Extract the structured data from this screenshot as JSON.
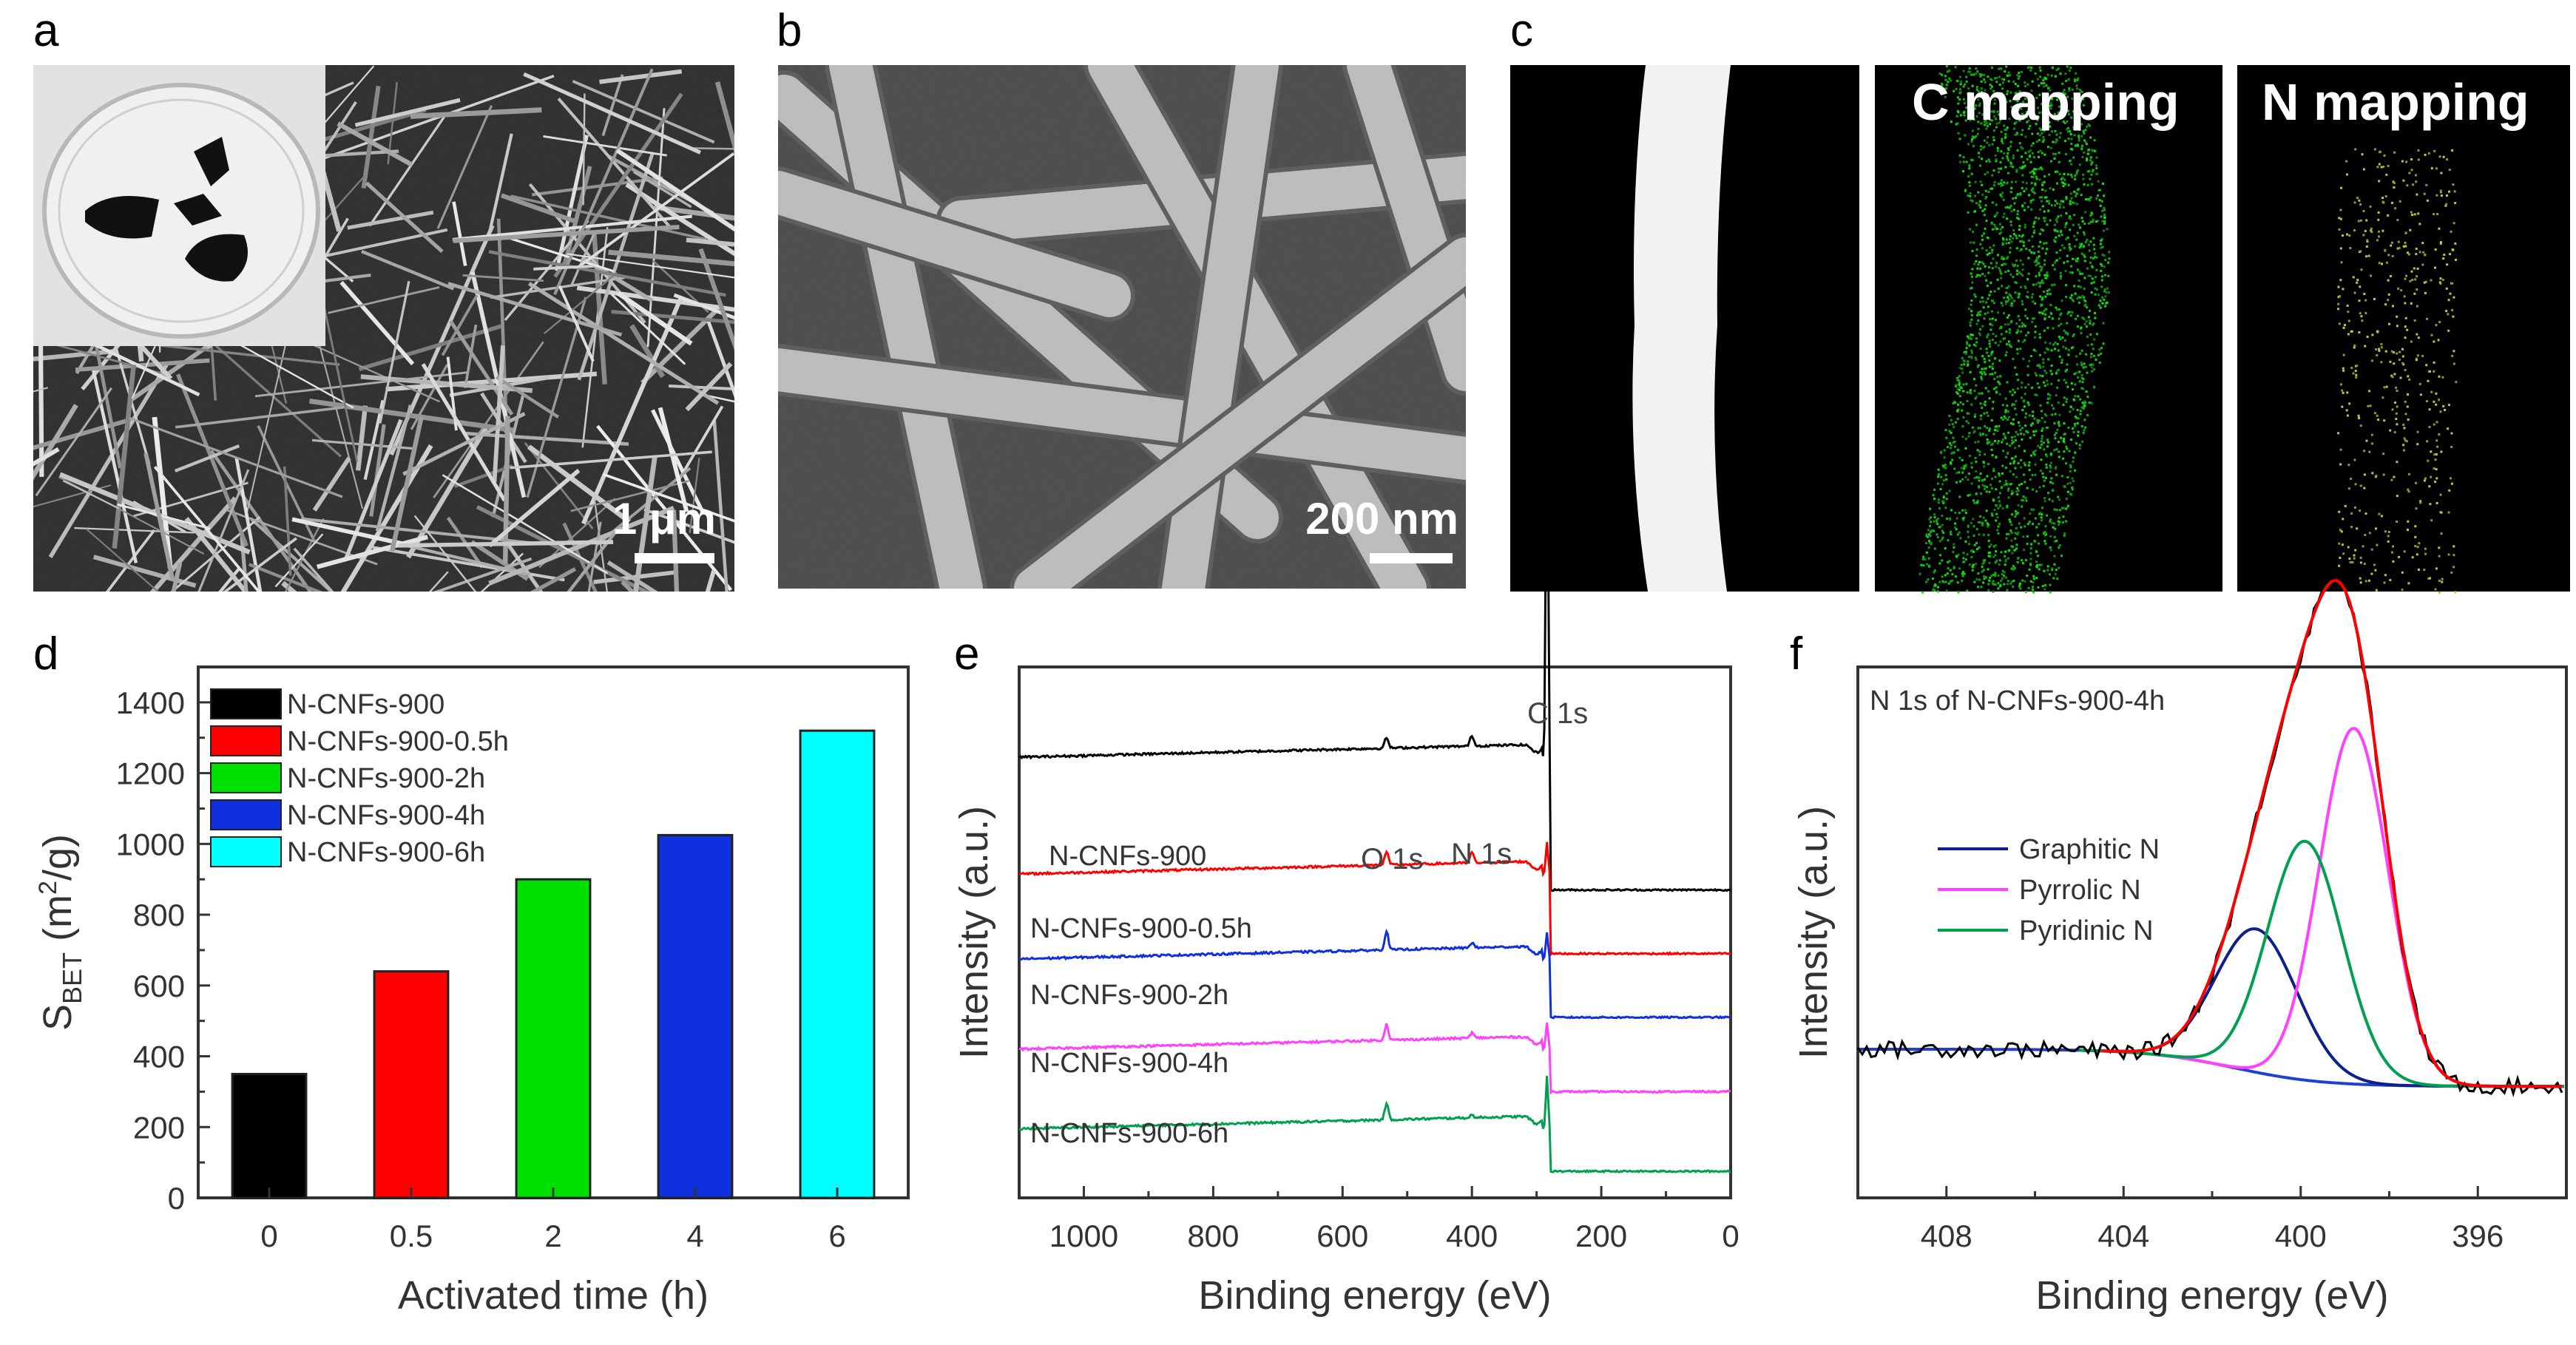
{
  "panels": {
    "a": {
      "letter": "a",
      "scale_bar": "1 μm"
    },
    "b": {
      "letter": "b",
      "scale_bar": "200 nm"
    },
    "c": {
      "letter": "c",
      "label_c": "C mapping",
      "label_n": "N mapping"
    },
    "d": {
      "letter": "d"
    },
    "e": {
      "letter": "e"
    },
    "f": {
      "letter": "f"
    }
  },
  "chart_data": [
    {
      "panel": "d",
      "type": "bar",
      "categories": [
        "0",
        "0.5",
        "2",
        "4",
        "6"
      ],
      "values": [
        350,
        640,
        900,
        1025,
        1320
      ],
      "colors": [
        "#000000",
        "#ff0000",
        "#00e000",
        "#1030e0",
        "#00ffff"
      ],
      "legend": [
        "N-CNFs-900",
        "N-CNFs-900-0.5h",
        "N-CNFs-900-2h",
        "N-CNFs-900-4h",
        "N-CNFs-900-6h"
      ],
      "legend_position": "top-left",
      "xlabel": "Activated time (h)",
      "ylabel_main": "S",
      "ylabel_sub": "BET",
      "ylabel_unit_pre": " (m",
      "ylabel_unit_sup": "2",
      "ylabel_unit_post": "/g)",
      "ylim": [
        0,
        1500
      ],
      "yticks": [
        0,
        200,
        400,
        600,
        800,
        1000,
        1200,
        1400
      ]
    },
    {
      "panel": "e",
      "type": "line",
      "xlabel": "Binding energy (eV)",
      "ylabel": "Intensity (a.u.)",
      "xlim": [
        1100,
        0
      ],
      "xticks": [
        1000,
        800,
        600,
        400,
        200,
        0
      ],
      "series": [
        {
          "name": "N-CNFs-900",
          "color": "#000000",
          "baseline": 0.83,
          "c1s": 0.7,
          "o1s": 0.02,
          "n1s": 0.02,
          "tail": 0.58
        },
        {
          "name": "N-CNFs-900-0.5h",
          "color": "#ff0000",
          "baseline": 0.61,
          "c1s": 0.06,
          "o1s": 0.025,
          "n1s": 0.02,
          "tail": 0.46
        },
        {
          "name": "N-CNFs-900-2h",
          "color": "#1030e0",
          "baseline": 0.45,
          "c1s": 0.05,
          "o1s": 0.035,
          "n1s": 0.01,
          "tail": 0.34
        },
        {
          "name": "N-CNFs-900-4h",
          "color": "#ff40ff",
          "baseline": 0.28,
          "c1s": 0.05,
          "o1s": 0.03,
          "n1s": 0.01,
          "tail": 0.2
        },
        {
          "name": "N-CNFs-900-6h",
          "color": "#00a050",
          "baseline": 0.13,
          "c1s": 0.1,
          "o1s": 0.03,
          "n1s": 0.005,
          "tail": 0.05
        }
      ],
      "annotations": [
        "C 1s",
        "O 1s",
        "N 1s"
      ]
    },
    {
      "panel": "f",
      "type": "line",
      "title": "N 1s of N-CNFs-900-4h",
      "xlabel": "Binding energy (eV)",
      "ylabel": "Intensity (a.u.)",
      "xlim": [
        410,
        394
      ],
      "xticks": [
        408,
        404,
        400,
        396
      ],
      "peaks": [
        {
          "name": "Graphitic N",
          "color": "#10208a",
          "center": 401.0,
          "height": 0.27,
          "width": 1.3
        },
        {
          "name": "Pyrrolic N",
          "color": "#ff40ff",
          "center": 398.8,
          "height": 0.67,
          "width": 1.1
        },
        {
          "name": "Pyridinic N",
          "color": "#00a050",
          "center": 399.9,
          "height": 0.45,
          "width": 1.2
        }
      ],
      "background": {
        "color": "#2040d0"
      },
      "fit_color": "#ff0000",
      "raw_color": "#000000"
    }
  ]
}
